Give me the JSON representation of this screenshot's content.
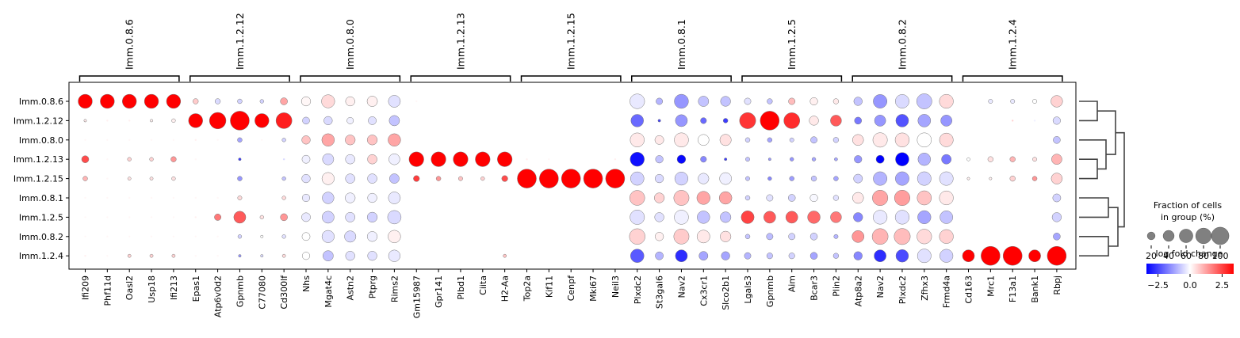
{
  "chart_data": {
    "type": "dotplot",
    "rows": [
      "Imm.0.8.6",
      "Imm.1.2.12",
      "Imm.0.8.0",
      "Imm.1.2.13",
      "Imm.1.2.15",
      "Imm.0.8.1",
      "Imm.1.2.5",
      "Imm.0.8.2",
      "Imm.1.2.4"
    ],
    "groups": [
      {
        "label": "Imm.0.8.6",
        "genes": [
          "Ifi209",
          "Phf11d",
          "Oasl2",
          "Usp18",
          "Ifi213"
        ]
      },
      {
        "label": "Imm.1.2.12",
        "genes": [
          "Epas1",
          "Atp6v0d2",
          "Gpnmb",
          "C77080",
          "Cd300lf"
        ]
      },
      {
        "label": "Imm.0.8.0",
        "genes": [
          "Nhs",
          "Mgat4c",
          "Astn2",
          "Ptprg",
          "Rims2"
        ]
      },
      {
        "label": "Imm.1.2.13",
        "genes": [
          "Gm15987",
          "Gpr141",
          "Plbd1",
          "Ciita",
          "H2-Aa"
        ]
      },
      {
        "label": "Imm.1.2.15",
        "genes": [
          "Top2a",
          "Kif11",
          "Cenpf",
          "Mki67",
          "Neil3"
        ]
      },
      {
        "label": "Imm.0.8.1",
        "genes": [
          "Plxdc2",
          "St3gal6",
          "Nav2",
          "Cx3cr1",
          "Slco2b1"
        ]
      },
      {
        "label": "Imm.1.2.5",
        "genes": [
          "Lgals3",
          "Gpnmb",
          "Aim",
          "Bcar3",
          "Plin2"
        ]
      },
      {
        "label": "Imm.0.8.2",
        "genes": [
          "Atp8a2",
          "Nav2",
          "Plxdc2",
          "Zfhx3",
          "Frmd4a"
        ]
      },
      {
        "label": "Imm.1.2.4",
        "genes": [
          "Cd163",
          "Mrc1",
          "F13a1",
          "Bank1",
          "Rbpj"
        ]
      }
    ],
    "fraction": [
      [
        55,
        55,
        55,
        55,
        55,
        8,
        8,
        6,
        4,
        14,
        24,
        48,
        24,
        30,
        40,
        1,
        0,
        1,
        0,
        0,
        0,
        0,
        0,
        0,
        0,
        60,
        12,
        55,
        30,
        28,
        12,
        8,
        12,
        16,
        8,
        20,
        52,
        52,
        64,
        54,
        0,
        5,
        5,
        5,
        38
      ],
      [
        2,
        1,
        1,
        2,
        4,
        55,
        75,
        100,
        55,
        70,
        14,
        20,
        12,
        18,
        30,
        1,
        0,
        0,
        0,
        0,
        0,
        0,
        0,
        0,
        0,
        44,
        2,
        40,
        10,
        6,
        72,
        100,
        70,
        24,
        34,
        14,
        35,
        45,
        45,
        35,
        0,
        1,
        1,
        1,
        16
      ],
      [
        1,
        1,
        1,
        1,
        1,
        1,
        1,
        6,
        1,
        4,
        20,
        44,
        28,
        28,
        44,
        1,
        0,
        0,
        0,
        0,
        0,
        0,
        0,
        0,
        0,
        55,
        22,
        56,
        34,
        36,
        6,
        6,
        5,
        12,
        8,
        34,
        58,
        55,
        56,
        52,
        0,
        0,
        0,
        0,
        14
      ],
      [
        14,
        1,
        4,
        4,
        8,
        1,
        0,
        2,
        0,
        1,
        18,
        35,
        25,
        25,
        34,
        60,
        60,
        60,
        60,
        60,
        1,
        1,
        0,
        0,
        1,
        55,
        16,
        20,
        10,
        2,
        5,
        2,
        4,
        4,
        3,
        16,
        18,
        50,
        44,
        26,
        3,
        8,
        8,
        5,
        30
      ],
      [
        6,
        1,
        3,
        3,
        4,
        0,
        0,
        6,
        1,
        4,
        20,
        42,
        25,
        25,
        26,
        10,
        6,
        5,
        4,
        10,
        100,
        100,
        100,
        100,
        100,
        50,
        20,
        48,
        32,
        40,
        5,
        4,
        6,
        8,
        6,
        22,
        52,
        52,
        52,
        52,
        2,
        2,
        8,
        6,
        34
      ],
      [
        1,
        1,
        1,
        1,
        1,
        1,
        1,
        5,
        1,
        4,
        16,
        38,
        28,
        24,
        40,
        0,
        0,
        0,
        0,
        0,
        0,
        0,
        0,
        0,
        0,
        62,
        28,
        64,
        48,
        44,
        6,
        12,
        14,
        16,
        8,
        34,
        66,
        66,
        56,
        54,
        0,
        0,
        0,
        0,
        18
      ],
      [
        1,
        1,
        1,
        1,
        1,
        1,
        12,
        40,
        4,
        14,
        22,
        40,
        26,
        28,
        50,
        0,
        0,
        0,
        0,
        0,
        0,
        0,
        0,
        0,
        0,
        58,
        24,
        56,
        44,
        32,
        46,
        40,
        40,
        44,
        34,
        24,
        54,
        54,
        48,
        46,
        0,
        0,
        0,
        0,
        24
      ],
      [
        1,
        1,
        1,
        1,
        1,
        1,
        1,
        4,
        2,
        4,
        18,
        42,
        36,
        28,
        44,
        0,
        0,
        0,
        0,
        0,
        0,
        0,
        0,
        0,
        0,
        68,
        20,
        64,
        46,
        32,
        6,
        12,
        12,
        14,
        5,
        40,
        70,
        72,
        60,
        54,
        0,
        0,
        0,
        0,
        14
      ],
      [
        1,
        1,
        3,
        3,
        3,
        1,
        1,
        2,
        2,
        3,
        16,
        30,
        24,
        24,
        38,
        0,
        0,
        0,
        0,
        3,
        0,
        0,
        0,
        0,
        0,
        50,
        18,
        40,
        22,
        20,
        12,
        10,
        10,
        14,
        8,
        20,
        40,
        44,
        52,
        48,
        40,
        100,
        100,
        40,
        100
      ]
    ],
    "logfc": [
      [
        3.4,
        3.4,
        3.4,
        3.4,
        3.4,
        0.7,
        -0.5,
        -0.6,
        -0.6,
        1.2,
        0.1,
        0.5,
        0.2,
        0.2,
        -0.4,
        0.1,
        0,
        0,
        0,
        0,
        0,
        0,
        0,
        0,
        0,
        -0.3,
        -1,
        -1.4,
        -0.8,
        -0.8,
        -0.4,
        -0.8,
        0.9,
        0.2,
        0.3,
        -0.8,
        -1.4,
        -0.5,
        -0.8,
        0.5,
        0,
        -0.3,
        -0.3,
        0,
        0.6
      ],
      [
        0.3,
        0.2,
        0.2,
        0.2,
        0.2,
        3.4,
        3.4,
        3.4,
        3.4,
        3,
        -0.6,
        -0.5,
        -0.2,
        -0.4,
        -0.8,
        0,
        0,
        0,
        0,
        0,
        0,
        0,
        0,
        0,
        0,
        -2,
        -2.5,
        -1.4,
        -2,
        -2.6,
        2.7,
        3.4,
        2.8,
        0.3,
        2.2,
        -1.8,
        -1.4,
        -2.3,
        -1.2,
        -1.4,
        0,
        0,
        0.6,
        -0.2,
        -0.5
      ],
      [
        0.1,
        0.1,
        0.1,
        0.1,
        0.1,
        0.2,
        0.1,
        -1.2,
        0.1,
        -0.6,
        0.8,
        1.2,
        0.8,
        0.8,
        1.2,
        0,
        0,
        0,
        0,
        0,
        0,
        0,
        0,
        0,
        0,
        0.3,
        0.3,
        0.3,
        0,
        0.4,
        -0.6,
        -1.2,
        -0.6,
        -0.8,
        -0.6,
        0.4,
        0.3,
        0.4,
        0,
        0.5,
        0,
        0,
        0,
        0,
        -0.8
      ],
      [
        2.4,
        0.1,
        0.6,
        0.6,
        1.4,
        0.1,
        0,
        -2.6,
        0,
        -0.5,
        -0.2,
        -0.5,
        -0.3,
        0.6,
        -0.2,
        3.4,
        3.4,
        3.4,
        3.4,
        3.4,
        0.2,
        0.1,
        0,
        0,
        0.2,
        -3.2,
        -0.8,
        -3.3,
        -1.6,
        -2.6,
        -0.8,
        -1.4,
        -1.4,
        -1.2,
        -1.2,
        -1.4,
        -3.4,
        -3.4,
        -1,
        -1.8,
        0,
        0.4,
        1,
        0.4,
        1
      ],
      [
        1,
        0.1,
        0.4,
        0.4,
        0.4,
        0,
        0,
        -1.4,
        0,
        -0.8,
        -0.4,
        0.2,
        -0.4,
        -0.4,
        -0.8,
        2.6,
        1.4,
        0.8,
        0.6,
        2.4,
        3.4,
        3.4,
        3.4,
        3.4,
        3.4,
        -0.6,
        -0.5,
        -0.6,
        -0.3,
        -0.2,
        -0.8,
        -1.6,
        -1.3,
        -0.8,
        -1.2,
        -0.6,
        -1,
        -1.2,
        -0.6,
        -0.4,
        0.2,
        0.2,
        0.6,
        1.4,
        0.6
      ],
      [
        0.1,
        0.1,
        0.1,
        0.1,
        0.1,
        0.1,
        0.1,
        0.5,
        0,
        0.5,
        -0.3,
        -0.6,
        -0.2,
        -0.2,
        -0.3,
        0,
        0,
        0,
        0,
        0,
        0,
        0,
        0,
        0,
        0,
        0.8,
        0.6,
        0.8,
        1.2,
        1.2,
        -0.6,
        -0.4,
        -0.6,
        -0.1,
        -0.4,
        0.3,
        1.2,
        1.3,
        0.8,
        0.3,
        0,
        0,
        0,
        0,
        -0.6
      ],
      [
        0.1,
        0.1,
        0.1,
        0.1,
        0.1,
        0.2,
        1.8,
        2.2,
        0.4,
        1.4,
        -0.3,
        -0.6,
        -0.4,
        -0.6,
        -0.5,
        0,
        0,
        0,
        0,
        0,
        0,
        0,
        0,
        0,
        0,
        -0.4,
        -0.4,
        -0.2,
        -0.8,
        -0.8,
        2.5,
        2.2,
        2.2,
        2,
        1.8,
        -1.6,
        -0.3,
        -0.4,
        -1.2,
        -0.8,
        0,
        0,
        0,
        0,
        -0.6
      ],
      [
        0.1,
        0.1,
        0.1,
        0.1,
        0.1,
        0.1,
        0.1,
        -0.6,
        0,
        -0.4,
        0,
        -0.4,
        -0.5,
        -0.2,
        0.2,
        0,
        0,
        0,
        0,
        0,
        0,
        0,
        0,
        0,
        0,
        0.6,
        0.2,
        0.7,
        0.3,
        0.4,
        -0.8,
        -0.9,
        -0.6,
        -0.6,
        -1,
        1.4,
        1,
        0.9,
        0.5,
        0.6,
        0,
        0,
        0,
        0,
        -1.2
      ],
      [
        0.2,
        0.1,
        0.6,
        0.6,
        0.6,
        0.1,
        0.1,
        -1.4,
        -0.5,
        0.5,
        0,
        -0.8,
        -0.4,
        -0.4,
        -0.3,
        0,
        0,
        0,
        0,
        0.8,
        0,
        0,
        0,
        0,
        0,
        -2.2,
        -1,
        -2.8,
        -1.2,
        -1.2,
        -1,
        -0.8,
        -0.6,
        -1.2,
        -0.8,
        -1.6,
        -2.8,
        -2.4,
        -0.4,
        -0.6,
        3.4,
        3.4,
        3.4,
        3.4,
        3.4
      ]
    ],
    "size_legend": {
      "title_line1": "Fraction of cells",
      "title_line2": "in group (%)",
      "ticks": [
        20,
        40,
        60,
        80,
        100
      ]
    },
    "color_legend": {
      "title": "log fold change",
      "ticks": [
        "−2.5",
        "0.0",
        "2.5"
      ],
      "vmin": -3.4,
      "vmax": 3.4,
      "colormap": "bwr"
    },
    "dendrogram": "rows"
  }
}
